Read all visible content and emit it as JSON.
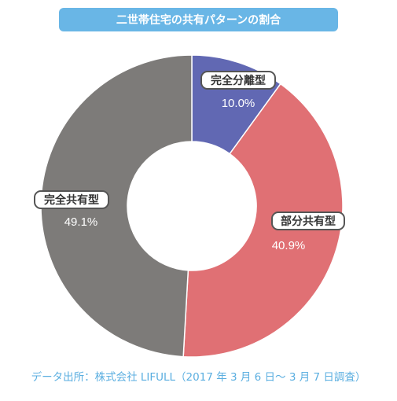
{
  "title": "二世帯住宅の共有パターンの割合",
  "source": "データ出所：株式会社 LIFULL（2017 年 3 月 6 日〜 3 月 7 日調査）",
  "chart_data": {
    "type": "pie",
    "donut": true,
    "title": "二世帯住宅の共有パターンの割合",
    "slices": [
      {
        "label": "完全分離型",
        "value": 10.0,
        "display": "10.0%",
        "color": "#6168b3"
      },
      {
        "label": "部分共有型",
        "value": 40.9,
        "display": "40.9%",
        "color": "#e07074"
      },
      {
        "label": "完全共有型",
        "value": 49.1,
        "display": "49.1%",
        "color": "#7d7b79"
      }
    ]
  }
}
